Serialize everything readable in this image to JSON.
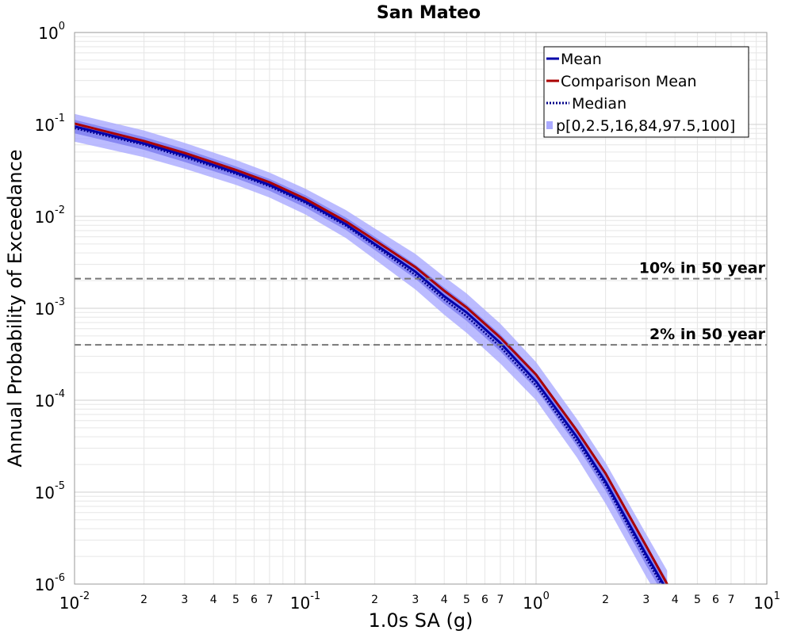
{
  "chart_data": {
    "type": "line",
    "title": "San Mateo",
    "xlabel": "1.0s SA (g)",
    "ylabel": "Annual Probability of Exceedance",
    "xscale": "log",
    "yscale": "log",
    "xlim": [
      0.01,
      10
    ],
    "ylim": [
      1e-06,
      1
    ],
    "grid": true,
    "legend_position": "top-right",
    "x": [
      0.01,
      0.02,
      0.03,
      0.05,
      0.07,
      0.1,
      0.15,
      0.2,
      0.3,
      0.4,
      0.5,
      0.7,
      1.0,
      1.5,
      2.0,
      3.0,
      3.7
    ],
    "series": [
      {
        "name": "Mean",
        "color": "#0000aa",
        "style": "solid",
        "values": [
          0.095,
          0.062,
          0.046,
          0.03,
          0.022,
          0.0145,
          0.0082,
          0.005,
          0.0025,
          0.00135,
          0.0009,
          0.00042,
          0.00016,
          4e-05,
          1.3e-05,
          2.1e-06,
          8.5e-07
        ]
      },
      {
        "name": "Comparison Mean",
        "color": "#aa0000",
        "style": "solid",
        "values": [
          0.102,
          0.066,
          0.049,
          0.032,
          0.0235,
          0.0155,
          0.0088,
          0.0055,
          0.0028,
          0.00155,
          0.00102,
          0.00048,
          0.00019,
          4.7e-05,
          1.6e-05,
          2.6e-06,
          1e-06
        ]
      },
      {
        "name": "Median",
        "color": "#000088",
        "style": "dotted",
        "values": [
          0.091,
          0.06,
          0.044,
          0.029,
          0.0212,
          0.014,
          0.0079,
          0.0048,
          0.0023,
          0.00125,
          0.00082,
          0.00038,
          0.000145,
          3.6e-05,
          1.2e-05,
          1.9e-06,
          7.8e-07
        ]
      },
      {
        "name": "p[0,2.5,16,84,97.5,100]",
        "color": "#aaaaff",
        "style": "band",
        "band_outer_low": [
          0.065,
          0.044,
          0.033,
          0.022,
          0.016,
          0.0105,
          0.0058,
          0.0034,
          0.0016,
          0.00085,
          0.00054,
          0.00025,
          0.0001,
          2.4e-05,
          7.5e-06,
          1.2e-06,
          5e-07
        ],
        "band_outer_high": [
          0.13,
          0.086,
          0.063,
          0.041,
          0.03,
          0.02,
          0.0117,
          0.0074,
          0.0039,
          0.0022,
          0.00145,
          0.00068,
          0.00026,
          6.3e-05,
          2.1e-05,
          3.5e-06,
          1.4e-06
        ],
        "band_inner_low": [
          0.08,
          0.053,
          0.039,
          0.026,
          0.019,
          0.0125,
          0.0071,
          0.0043,
          0.0021,
          0.00112,
          0.00073,
          0.00034,
          0.000132,
          3.2e-05,
          1.04e-05,
          1.6e-06,
          6.6e-07
        ],
        "band_inner_high": [
          0.112,
          0.073,
          0.054,
          0.035,
          0.0255,
          0.017,
          0.0097,
          0.006,
          0.003,
          0.00168,
          0.0011,
          0.00052,
          0.0002,
          5e-05,
          1.65e-05,
          2.7e-06,
          1.1e-06
        ]
      }
    ],
    "hlines": [
      {
        "label": "10% in 50 year",
        "value": 0.0021
      },
      {
        "label": "2% in 50 year",
        "value": 0.0004
      }
    ],
    "x_major_ticks": [
      {
        "value": 0.01,
        "base": "10",
        "exp": "-2"
      },
      {
        "value": 0.1,
        "base": "10",
        "exp": "-1"
      },
      {
        "value": 1,
        "base": "10",
        "exp": "0"
      },
      {
        "value": 10,
        "base": "10",
        "exp": "1"
      }
    ],
    "y_major_ticks": [
      {
        "value": 1,
        "base": "10",
        "exp": "0"
      },
      {
        "value": 0.1,
        "base": "10",
        "exp": "-1"
      },
      {
        "value": 0.01,
        "base": "10",
        "exp": "-2"
      },
      {
        "value": 0.001,
        "base": "10",
        "exp": "-3"
      },
      {
        "value": 0.0001,
        "base": "10",
        "exp": "-4"
      },
      {
        "value": 1e-05,
        "base": "10",
        "exp": "-5"
      },
      {
        "value": 1e-06,
        "base": "10",
        "exp": "-6"
      }
    ],
    "x_minor_labels": [
      "2",
      "3",
      "4",
      "5",
      "6",
      "7"
    ]
  }
}
